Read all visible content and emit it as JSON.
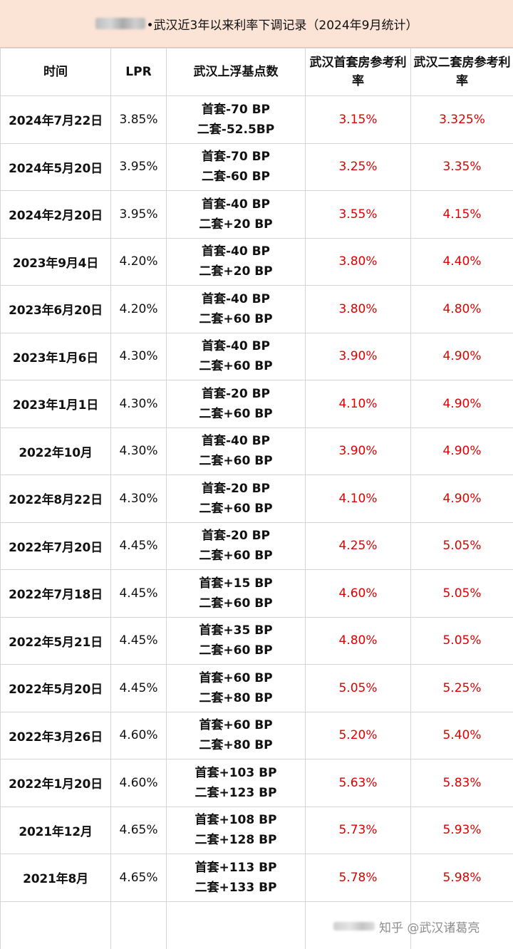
{
  "title": "•武汉近3年以来利率下调记录（2024年9月统计）",
  "headers": [
    "时间",
    "LPR",
    "武汉上浮基点数",
    "武汉首套房参考利率",
    "武汉二套房参考利率"
  ],
  "rows": [
    {
      "date": "2024年7月22日",
      "lpr": "3.85%",
      "bp1": "首套-70 BP",
      "bp2": "二套-52.5BP",
      "first": "3.15%",
      "second": "3.325%"
    },
    {
      "date": "2024年5月20日",
      "lpr": "3.95%",
      "bp1": "首套-70 BP",
      "bp2": "二套-60 BP",
      "first": "3.25%",
      "second": "3.35%"
    },
    {
      "date": "2024年2月20日",
      "lpr": "3.95%",
      "bp1": "首套-40 BP",
      "bp2": "二套+20 BP",
      "first": "3.55%",
      "second": "4.15%"
    },
    {
      "date": "2023年9月4日",
      "lpr": "4.20%",
      "bp1": "首套-40 BP",
      "bp2": "二套+20 BP",
      "first": "3.80%",
      "second": "4.40%"
    },
    {
      "date": "2023年6月20日",
      "lpr": "4.20%",
      "bp1": "首套-40 BP",
      "bp2": "二套+60 BP",
      "first": "3.80%",
      "second": "4.80%"
    },
    {
      "date": "2023年1月6日",
      "lpr": "4.30%",
      "bp1": "首套-40 BP",
      "bp2": "二套+60 BP",
      "first": "3.90%",
      "second": "4.90%"
    },
    {
      "date": "2023年1月1日",
      "lpr": "4.30%",
      "bp1": "首套-20 BP",
      "bp2": "二套+60 BP",
      "first": "4.10%",
      "second": "4.90%"
    },
    {
      "date": "2022年10月",
      "lpr": "4.30%",
      "bp1": "首套-40 BP",
      "bp2": "二套+60 BP",
      "first": "3.90%",
      "second": "4.90%"
    },
    {
      "date": "2022年8月22日",
      "lpr": "4.30%",
      "bp1": "首套-20 BP",
      "bp2": "二套+60 BP",
      "first": "4.10%",
      "second": "4.90%"
    },
    {
      "date": "2022年7月20日",
      "lpr": "4.45%",
      "bp1": "首套-20 BP",
      "bp2": "二套+60 BP",
      "first": "4.25%",
      "second": "5.05%"
    },
    {
      "date": "2022年7月18日",
      "lpr": "4.45%",
      "bp1": "首套+15 BP",
      "bp2": "二套+60 BP",
      "first": "4.60%",
      "second": "5.05%"
    },
    {
      "date": "2022年5月21日",
      "lpr": "4.45%",
      "bp1": "首套+35 BP",
      "bp2": "二套+60 BP",
      "first": "4.80%",
      "second": "5.05%"
    },
    {
      "date": "2022年5月20日",
      "lpr": "4.45%",
      "bp1": "首套+60 BP",
      "bp2": "二套+80 BP",
      "first": "5.05%",
      "second": "5.25%"
    },
    {
      "date": "2022年3月26日",
      "lpr": "4.60%",
      "bp1": "首套+60 BP",
      "bp2": "二套+80 BP",
      "first": "5.20%",
      "second": "5.40%"
    },
    {
      "date": "2022年1月20日",
      "lpr": "4.60%",
      "bp1": "首套+103 BP",
      "bp2": "二套+123 BP",
      "first": "5.63%",
      "second": "5.83%"
    },
    {
      "date": "2021年12月",
      "lpr": "4.65%",
      "bp1": "首套+108 BP",
      "bp2": "二套+128 BP",
      "first": "5.73%",
      "second": "5.93%"
    },
    {
      "date": "2021年8月",
      "lpr": "4.65%",
      "bp1": "首套+113 BP",
      "bp2": "二套+133 BP",
      "first": "5.78%",
      "second": "5.98%"
    }
  ],
  "watermark": "知乎 @武汉诸葛亮",
  "colors": {
    "banner_bg": "#fbe3d6",
    "rate_red": "#e00000",
    "grid": "#d4d4d4"
  }
}
